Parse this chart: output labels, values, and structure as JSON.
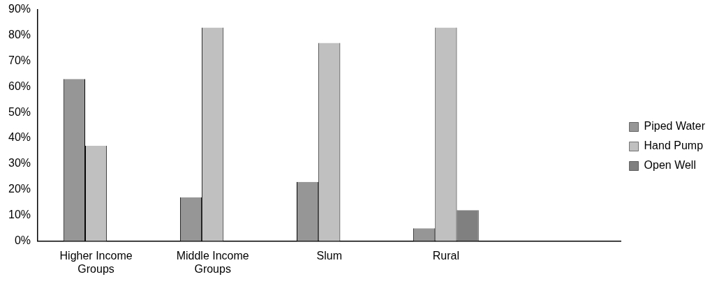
{
  "chart_data": {
    "type": "bar",
    "categories": [
      "Higher Income Groups",
      "Middle Income Groups",
      "Slum",
      "Rural",
      null
    ],
    "series": [
      {
        "name": "Piped Water",
        "color": "#969696",
        "values": [
          63,
          17,
          23,
          5,
          null
        ]
      },
      {
        "name": "Hand Pump",
        "color": "#c0c0c0",
        "values": [
          37,
          83,
          77,
          83,
          null
        ]
      },
      {
        "name": "Open Well",
        "color": "#808080",
        "values": [
          null,
          null,
          null,
          12,
          null
        ]
      }
    ],
    "ylim": [
      0,
      90
    ],
    "yticks": [
      {
        "value": 0,
        "label": "0%"
      },
      {
        "value": 10,
        "label": "10%"
      },
      {
        "value": 20,
        "label": "20%"
      },
      {
        "value": 30,
        "label": "30%"
      },
      {
        "value": 40,
        "label": "40%"
      },
      {
        "value": 50,
        "label": "50%"
      },
      {
        "value": 60,
        "label": "60%"
      },
      {
        "value": 70,
        "label": "70%"
      },
      {
        "value": 80,
        "label": "80%"
      },
      {
        "value": 90,
        "label": "90%"
      }
    ],
    "grid": false,
    "legend": "right"
  }
}
